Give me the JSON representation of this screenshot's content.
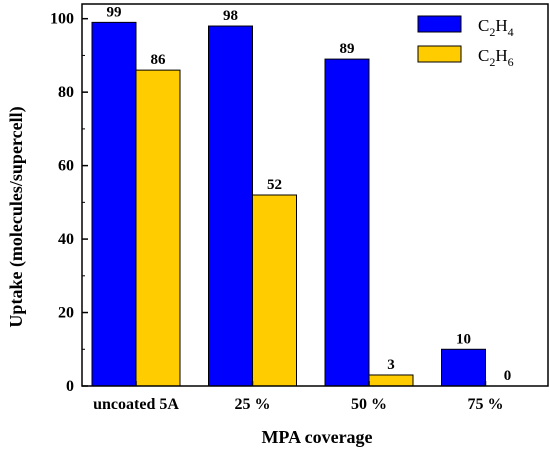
{
  "chart_data": {
    "type": "bar",
    "categories": [
      "uncoated 5A",
      "25 %",
      "50 %",
      "75 %"
    ],
    "series": [
      {
        "name": "C2H4",
        "name_main": "C",
        "name_sub1": "2",
        "name_mid": "H",
        "name_sub2": "4",
        "color": "#0000ff",
        "values": [
          99,
          98,
          89,
          10
        ]
      },
      {
        "name": "C2H6",
        "name_main": "C",
        "name_sub1": "2",
        "name_mid": "H",
        "name_sub2": "6",
        "color": "#ffcc00",
        "values": [
          86,
          52,
          3,
          0
        ]
      }
    ],
    "xlabel": "MPA coverage",
    "ylabel": "Uptake (molecules/supercell)",
    "ylim": [
      0,
      104
    ],
    "yticks": [
      0,
      20,
      40,
      60,
      80,
      100
    ],
    "grid": false,
    "legend_position": "top-right"
  }
}
